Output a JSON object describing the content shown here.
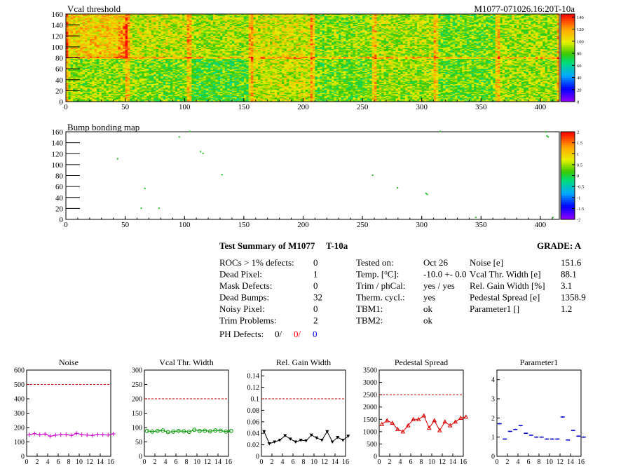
{
  "header": {
    "plot1_title": "Vcal threshold",
    "module_id": "M1077-071026.16:20T-10a",
    "plot2_title": "Bump bonding map"
  },
  "chart_data": [
    {
      "type": "heatmap",
      "title": "Vcal threshold",
      "x_ticks": [
        "0",
        "50",
        "100",
        "150",
        "200",
        "250",
        "300",
        "350",
        "400"
      ],
      "y_ticks": [
        "0",
        "20",
        "40",
        "60",
        "80",
        "100",
        "120",
        "140",
        "160"
      ],
      "xlim": [
        0,
        416
      ],
      "ylim": [
        0,
        160
      ],
      "colorbar": {
        "ticks": [
          "0",
          "20",
          "40",
          "60",
          "80",
          "100",
          "120",
          "140"
        ],
        "range": [
          0,
          145
        ]
      },
      "roc_means": [
        [
          108,
          96,
          92,
          98,
          88,
          92,
          85,
          90
        ],
        [
          90,
          86,
          80,
          96,
          84,
          90,
          84,
          90
        ]
      ]
    },
    {
      "type": "heatmap",
      "title": "Bump bonding map",
      "x_ticks": [
        "0",
        "50",
        "100",
        "150",
        "200",
        "250",
        "300",
        "350",
        "400"
      ],
      "y_ticks": [
        "0",
        "20",
        "40",
        "60",
        "80",
        "100",
        "120",
        "140",
        "160"
      ],
      "xlim": [
        0,
        416
      ],
      "ylim": [
        0,
        160
      ],
      "colorbar": {
        "ticks": [
          "-2",
          "-1.5",
          "-1",
          "-0.5",
          "0",
          "0.5",
          "1",
          "1.5",
          "2"
        ],
        "range": [
          -2,
          2
        ]
      },
      "points": [
        [
          104,
          160
        ],
        [
          95,
          150
        ],
        [
          113,
          123
        ],
        [
          115,
          120
        ],
        [
          43,
          110
        ],
        [
          131,
          81
        ],
        [
          66,
          56
        ],
        [
          63,
          20
        ],
        [
          78,
          20
        ],
        [
          258,
          80
        ],
        [
          279,
          57
        ],
        [
          303,
          47
        ],
        [
          304,
          45
        ],
        [
          315,
          160
        ],
        [
          404,
          159
        ],
        [
          405,
          152
        ],
        [
          406,
          150
        ],
        [
          345,
          3
        ],
        [
          410,
          3
        ]
      ]
    },
    {
      "type": "line",
      "title": "Noise",
      "x": [
        0,
        1,
        2,
        3,
        4,
        5,
        6,
        7,
        8,
        9,
        10,
        11,
        12,
        13,
        14,
        15,
        16
      ],
      "values": [
        150,
        158,
        150,
        155,
        140,
        147,
        150,
        152,
        145,
        160,
        150,
        148,
        145,
        152,
        150,
        148,
        156
      ],
      "reference": 500,
      "ylim": [
        0,
        600
      ],
      "x_ticks": [
        "0",
        "2",
        "4",
        "6",
        "8",
        "10",
        "12",
        "14",
        "16"
      ],
      "y_ticks": [
        "0",
        "100",
        "200",
        "300",
        "400",
        "500",
        "600"
      ],
      "color": "#cc00cc"
    },
    {
      "type": "line",
      "title": "Vcal Thr. Width",
      "x": [
        0,
        1,
        2,
        3,
        4,
        5,
        6,
        7,
        8,
        9,
        10,
        11,
        12,
        13,
        14,
        15,
        16
      ],
      "values": [
        88,
        86,
        88,
        90,
        84,
        86,
        88,
        87,
        85,
        92,
        88,
        89,
        87,
        90,
        89,
        86,
        88
      ],
      "reference": 200,
      "ylim": [
        0,
        300
      ],
      "x_ticks": [
        "0",
        "2",
        "4",
        "6",
        "8",
        "10",
        "12",
        "14",
        "16"
      ],
      "y_ticks": [
        "0",
        "50",
        "100",
        "150",
        "200",
        "250",
        "300"
      ],
      "color": "#009900"
    },
    {
      "type": "line",
      "title": "Rel. Gain Width",
      "x": [
        0,
        1,
        2,
        3,
        4,
        5,
        6,
        7,
        8,
        9,
        10,
        11,
        12,
        13,
        14,
        15,
        16
      ],
      "values": [
        0.043,
        0.022,
        0.025,
        0.028,
        0.036,
        0.03,
        0.025,
        0.028,
        0.027,
        0.037,
        0.032,
        0.028,
        0.043,
        0.025,
        0.033,
        0.028,
        0.035
      ],
      "reference": 0.1,
      "ylim": [
        0,
        0.15
      ],
      "x_ticks": [
        "0",
        "2",
        "4",
        "6",
        "8",
        "10",
        "12",
        "14",
        "16"
      ],
      "y_ticks": [
        "0",
        "0.02",
        "0.04",
        "0.06",
        "0.08",
        "0.1",
        "0.12",
        "0.14"
      ],
      "color": "#000000"
    },
    {
      "type": "line",
      "title": "Pedestal Spread",
      "x": [
        0,
        1,
        2,
        3,
        4,
        5,
        6,
        7,
        8,
        9,
        10,
        11,
        12,
        13,
        14,
        15,
        16
      ],
      "values": [
        1300,
        1450,
        1350,
        1100,
        1000,
        1250,
        1500,
        1500,
        1650,
        1150,
        1450,
        1050,
        1400,
        1250,
        1400,
        1550,
        1600
      ],
      "reference": 2500,
      "ylim": [
        0,
        3500
      ],
      "x_ticks": [
        "0",
        "2",
        "4",
        "6",
        "8",
        "10",
        "12",
        "14",
        "16"
      ],
      "y_ticks": [
        "0",
        "500",
        "1000",
        "1500",
        "2000",
        "2500",
        "3000",
        "3500"
      ],
      "color": "#dd0000"
    },
    {
      "type": "scatter",
      "title": "Parameter1",
      "x": [
        0,
        1,
        2,
        3,
        4,
        5,
        6,
        7,
        8,
        9,
        10,
        11,
        12,
        13,
        14,
        15,
        16
      ],
      "values": [
        1.7,
        0.9,
        1.3,
        1.4,
        1.6,
        1.2,
        1.1,
        1.0,
        1.0,
        0.9,
        0.9,
        0.9,
        2.05,
        0.85,
        1.35,
        1.05,
        1.0
      ],
      "ylim": [
        0,
        4.5
      ],
      "x_ticks": [
        "0",
        "2",
        "4",
        "6",
        "8",
        "10",
        "12",
        "14",
        "16"
      ],
      "y_ticks": [
        "0",
        "1",
        "2",
        "3",
        "4"
      ],
      "color": "#0000cc"
    }
  ],
  "summary": {
    "title": "Test Summary of M1077",
    "temp_label": "T-10a",
    "grade": "GRADE:  A",
    "col1": [
      {
        "label": "ROCs > 1% defects:",
        "value": "0"
      },
      {
        "label": "Dead Pixel:",
        "value": "1"
      },
      {
        "label": "Mask Defects:",
        "value": "0"
      },
      {
        "label": "Dead Bumps:",
        "value": "32"
      },
      {
        "label": "Noisy Pixel:",
        "value": "0"
      },
      {
        "label": "Trim Problems:",
        "value": "2"
      }
    ],
    "ph_defects": {
      "label": "PH Defects:",
      "v1": "0/",
      "v2": "0/",
      "v3": "0"
    },
    "col2": [
      {
        "label": "Tested on:",
        "value": "Oct 26"
      },
      {
        "label": "Temp. [",
        "label_sup": "o",
        "label_end": "C]:",
        "value": "-10.0 +- 0.0"
      },
      {
        "label": "Trim / phCal:",
        "value": "yes / yes"
      },
      {
        "label": "Therm. cycl.:",
        "value": "yes"
      },
      {
        "label": "TBM1:",
        "value": "ok"
      },
      {
        "label": "TBM2:",
        "value": "ok"
      }
    ],
    "col3": [
      {
        "label": "Noise [e]",
        "value": "151.6"
      },
      {
        "label": "Vcal Thr. Width [e]",
        "value": "88.1"
      },
      {
        "label": "Rel. Gain Width [%]",
        "value": "3.1"
      },
      {
        "label": "Pedestal Spread [e]",
        "value": "1358.9"
      },
      {
        "label": "Parameter1 []",
        "value": "1.2"
      }
    ]
  }
}
